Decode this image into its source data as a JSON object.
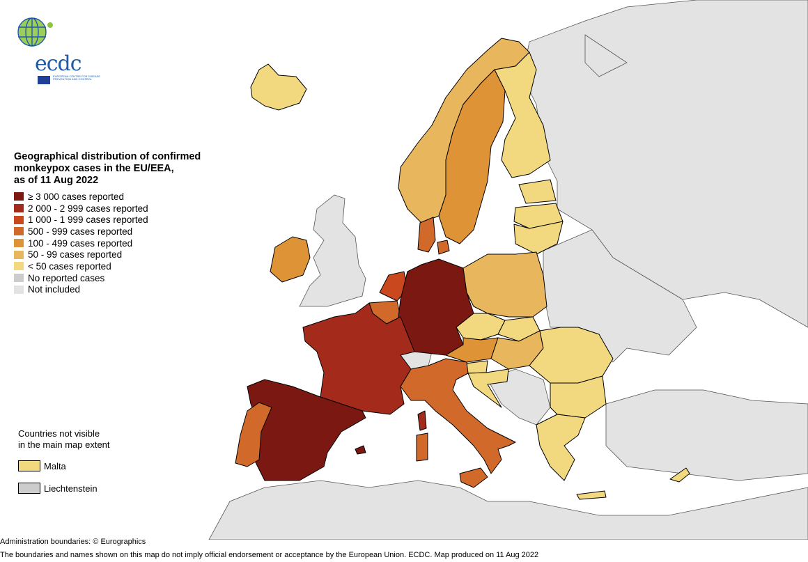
{
  "logo": {
    "text": "ecdc",
    "subtitle": "EUROPEAN CENTRE FOR DISEASE PREVENTION AND CONTROL",
    "icon": "globe-icon"
  },
  "legend": {
    "title_lines": [
      "Geographical distribution of confirmed",
      "monkeypox cases in the EU/EEA,",
      "as of 11 Aug 2022"
    ],
    "items": [
      {
        "label": "≥ 3 000 cases reported",
        "color": "#7b1812"
      },
      {
        "label": "2 000 - 2 999 cases reported",
        "color": "#a42b1b"
      },
      {
        "label": "1 000 - 1 999 cases reported",
        "color": "#c9481d"
      },
      {
        "label": "500 - 999 cases reported",
        "color": "#d1692a"
      },
      {
        "label": "100 - 499 cases reported",
        "color": "#de9336"
      },
      {
        "label": "50 - 99 cases reported",
        "color": "#e8b65c"
      },
      {
        "label": "< 50 cases reported",
        "color": "#f2d980"
      },
      {
        "label": "No reported cases",
        "color": "#cccccc"
      },
      {
        "label": "Not included",
        "color": "#e3e3e3"
      }
    ]
  },
  "inset": {
    "title_lines": [
      "Countries not visible",
      "in the main map extent"
    ],
    "items": [
      {
        "label": "Malta",
        "color": "#f2d980"
      },
      {
        "label": "Liechtenstein",
        "color": "#cccccc"
      }
    ]
  },
  "footer": {
    "line1": "Administration boundaries: © Eurographics",
    "line2": "The boundaries and names shown on this map do not imply official endorsement or acceptance by the European Union. ECDC. Map produced on 11 Aug 2022"
  },
  "colors": {
    "sea": "#ffffff",
    "border": "#000000"
  }
}
